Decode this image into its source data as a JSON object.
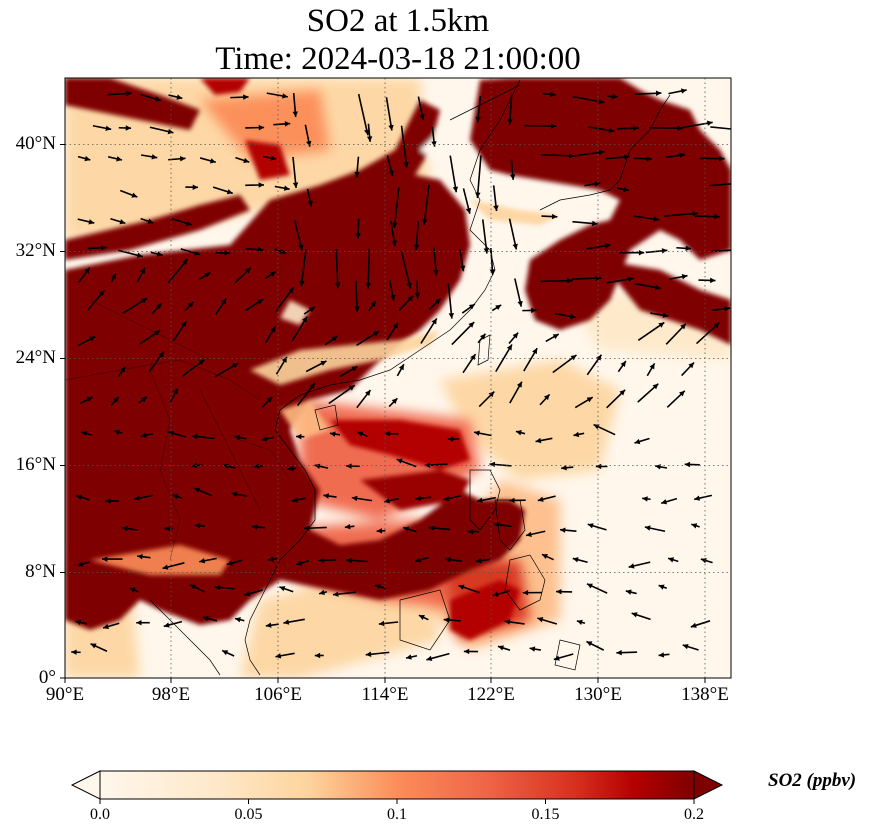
{
  "title": {
    "line1": "SO2 at 1.5km",
    "line2": "Time: 2024-03-18 21:00:00"
  },
  "map": {
    "projection": "PlateCarree",
    "extent_lon": [
      90,
      139.5
    ],
    "extent_lat": [
      0,
      44.5
    ],
    "gridlines": "dotted",
    "variable": "SO2",
    "level": "1.5km",
    "wind_vectors": true,
    "coastlines": true,
    "borders": true
  },
  "axes": {
    "yticks": [
      "0°",
      "8°N",
      "16°N",
      "24°N",
      "32°N",
      "40°N"
    ],
    "xticks": [
      "90°E",
      "98°E",
      "106°E",
      "114°E",
      "122°E",
      "130°E",
      "138°E"
    ]
  },
  "colorbar": {
    "label": "SO2 (ppbv)",
    "ticks": [
      "0.0",
      "0.05",
      "0.1",
      "0.15",
      "0.2"
    ],
    "colormap": "OrRd",
    "colors": [
      "#fff7ec",
      "#fdd49e",
      "#fc8d59",
      "#d7301f",
      "#7f0000"
    ],
    "extend": "both",
    "range": [
      0.0,
      0.2
    ]
  },
  "colors": {
    "high": "#7f0000",
    "mid": "#e34a33",
    "low": "#fdd49e",
    "background": "#fff7ec"
  }
}
